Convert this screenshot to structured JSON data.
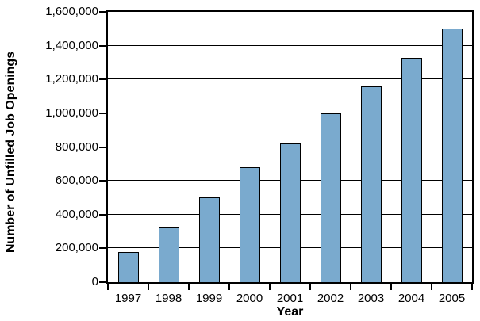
{
  "chart_data": {
    "type": "bar",
    "title": "",
    "xlabel": "Year",
    "ylabel": "Number of Unfilled Job Openings",
    "categories": [
      "1997",
      "1998",
      "1999",
      "2000",
      "2001",
      "2002",
      "2003",
      "2004",
      "2005"
    ],
    "values": [
      180000,
      325000,
      500000,
      680000,
      820000,
      1000000,
      1160000,
      1330000,
      1500000
    ],
    "ylim": [
      0,
      1600000
    ],
    "ytick_step": 200000,
    "ytick_labels": [
      "0",
      "200,000",
      "400,000",
      "600,000",
      "800,000",
      "1,000,000",
      "1,200,000",
      "1,400,000",
      "1,600,000"
    ],
    "grid": true,
    "legend": "none",
    "bar_color": "#7AAACE",
    "bar_border_color": "#000000",
    "axis_color": "#000000",
    "text_color": "#000000"
  }
}
